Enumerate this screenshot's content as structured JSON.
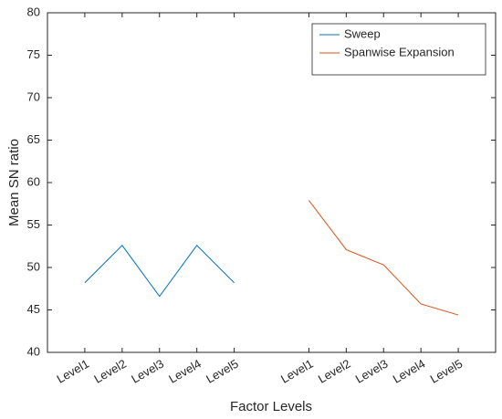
{
  "chart_data": {
    "type": "line",
    "xlabel": "Factor Levels",
    "ylabel": "Mean SN ratio",
    "categories": [
      "Level1",
      "Level2",
      "Level3",
      "Level4",
      "Level5",
      null,
      "Level1",
      "Level2",
      "Level3",
      "Level4",
      "Level5"
    ],
    "series": [
      {
        "name": "Sweep",
        "color": "#0072BD",
        "values": [
          48.2,
          52.6,
          46.6,
          52.6,
          48.2,
          null,
          null,
          null,
          null,
          null,
          null
        ]
      },
      {
        "name": "Spanwise Expansion",
        "color": "#D95319",
        "values": [
          null,
          null,
          null,
          null,
          null,
          null,
          57.9,
          52.1,
          50.3,
          45.7,
          44.4
        ]
      }
    ],
    "ylim": [
      40,
      80
    ],
    "yticks": [
      40,
      45,
      50,
      55,
      60,
      65,
      70,
      75,
      80
    ],
    "legend": "northeast"
  }
}
